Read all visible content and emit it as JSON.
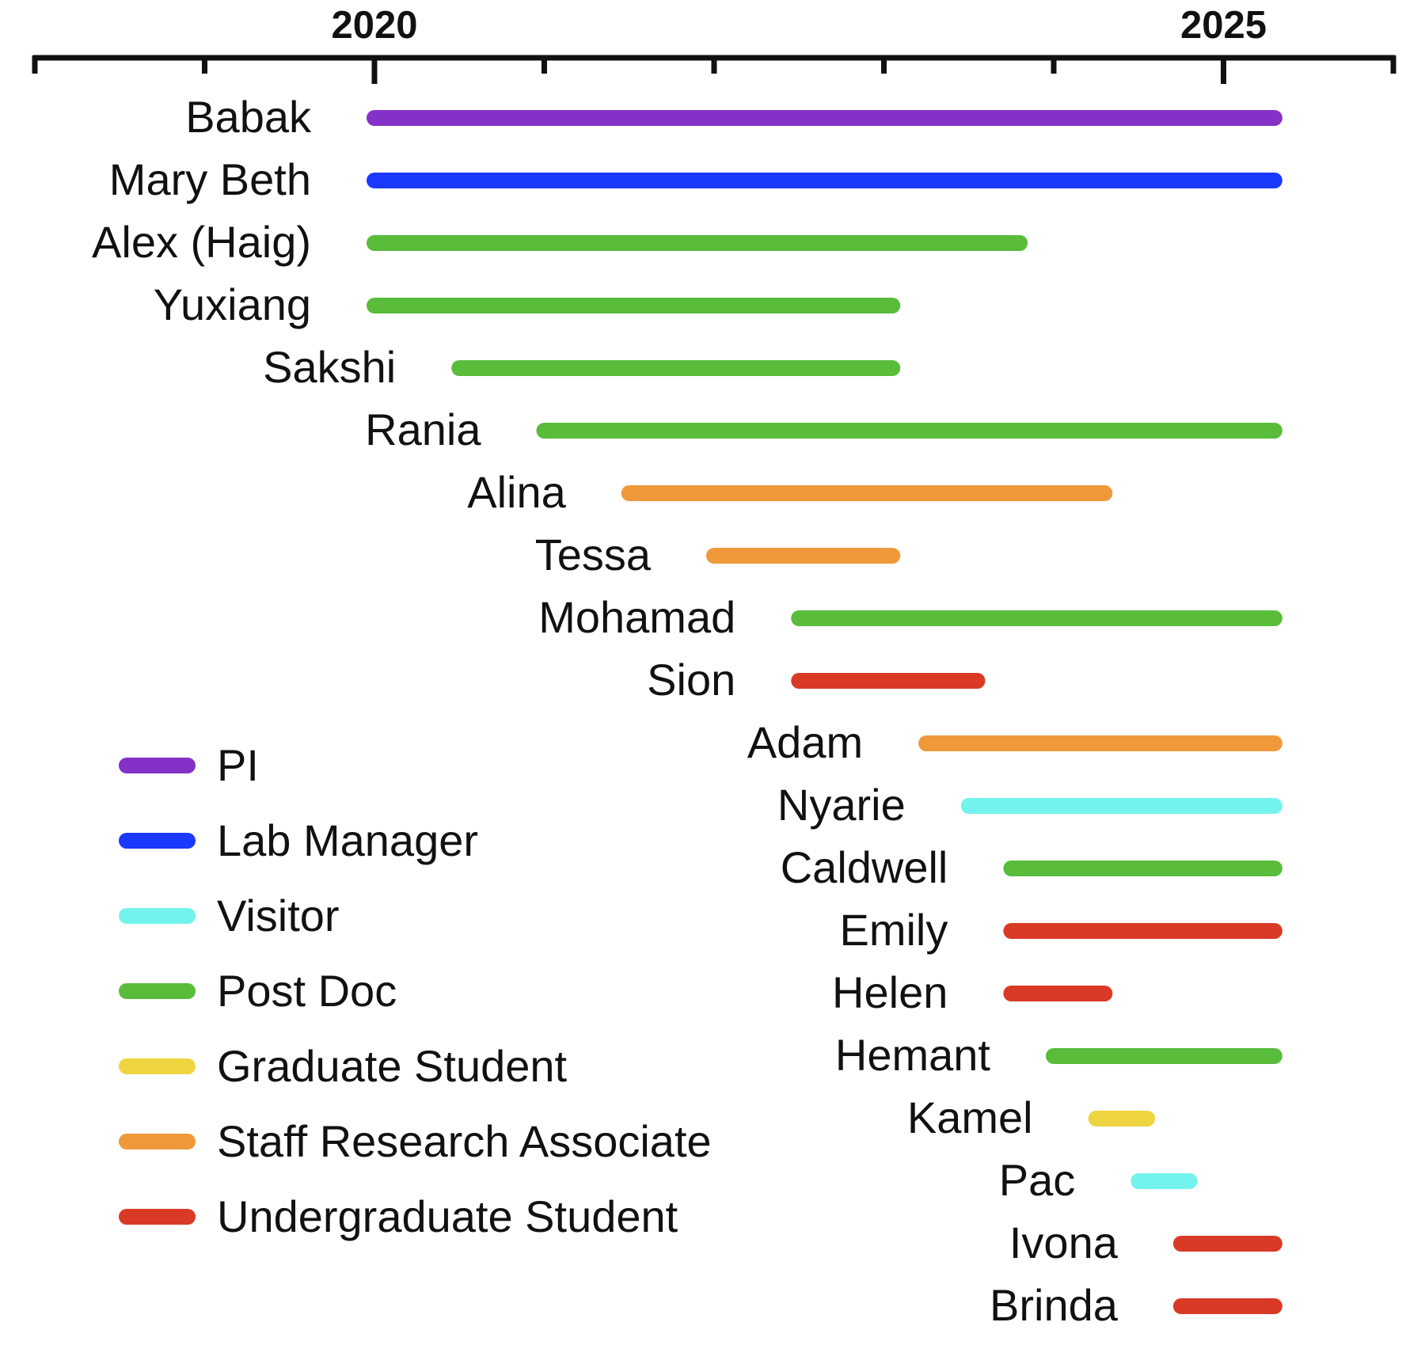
{
  "chart_data": {
    "type": "timeline",
    "title": "",
    "xlabel": "",
    "ylabel": "",
    "x_axis_position": "top",
    "xlim": [
      2018,
      2026
    ],
    "major_ticks": [
      2020,
      2025
    ],
    "minor_ticks": [
      2018,
      2019,
      2020,
      2021,
      2022,
      2023,
      2024,
      2025,
      2026
    ],
    "tick_labels": [
      "2020",
      "2025"
    ],
    "grid": false,
    "legend_position": "bottom-left",
    "categories": [
      {
        "key": "pi",
        "label": "PI",
        "color": "#8431C7"
      },
      {
        "key": "lab_manager",
        "label": "Lab Manager",
        "color": "#1A39FC"
      },
      {
        "key": "visitor",
        "label": "Visitor",
        "color": "#74F3EE"
      },
      {
        "key": "post_doc",
        "label": "Post Doc",
        "color": "#59BC3B"
      },
      {
        "key": "graduate_student",
        "label": "Graduate Student",
        "color": "#EED540"
      },
      {
        "key": "staff_research_associate",
        "label": "Staff Research Associate",
        "color": "#EF993A"
      },
      {
        "key": "undergraduate_student",
        "label": "Undergraduate Student",
        "color": "#D93A26"
      }
    ],
    "people": [
      {
        "name": "Babak",
        "role": "pi",
        "start": 2020.0,
        "end": 2025.3
      },
      {
        "name": "Mary Beth",
        "role": "lab_manager",
        "start": 2020.0,
        "end": 2025.3
      },
      {
        "name": "Alex (Haig)",
        "role": "post_doc",
        "start": 2020.0,
        "end": 2023.8
      },
      {
        "name": "Yuxiang",
        "role": "post_doc",
        "start": 2020.0,
        "end": 2023.05
      },
      {
        "name": "Sakshi",
        "role": "post_doc",
        "start": 2020.5,
        "end": 2023.05
      },
      {
        "name": "Rania",
        "role": "post_doc",
        "start": 2021.0,
        "end": 2025.3
      },
      {
        "name": "Alina",
        "role": "staff_research_associate",
        "start": 2021.5,
        "end": 2024.3
      },
      {
        "name": "Tessa",
        "role": "staff_research_associate",
        "start": 2022.0,
        "end": 2023.05
      },
      {
        "name": "Mohamad",
        "role": "post_doc",
        "start": 2022.5,
        "end": 2025.3
      },
      {
        "name": "Sion",
        "role": "undergraduate_student",
        "start": 2022.5,
        "end": 2023.55
      },
      {
        "name": "Adam",
        "role": "staff_research_associate",
        "start": 2023.25,
        "end": 2025.3
      },
      {
        "name": "Nyarie",
        "role": "visitor",
        "start": 2023.5,
        "end": 2025.3
      },
      {
        "name": "Caldwell",
        "role": "post_doc",
        "start": 2023.75,
        "end": 2025.3
      },
      {
        "name": "Emily",
        "role": "undergraduate_student",
        "start": 2023.75,
        "end": 2025.3
      },
      {
        "name": "Helen",
        "role": "undergraduate_student",
        "start": 2023.75,
        "end": 2024.3
      },
      {
        "name": "Hemant",
        "role": "post_doc",
        "start": 2024.0,
        "end": 2025.3
      },
      {
        "name": "Kamel",
        "role": "graduate_student",
        "start": 2024.25,
        "end": 2024.55
      },
      {
        "name": "Pac",
        "role": "visitor",
        "start": 2024.5,
        "end": 2024.8
      },
      {
        "name": "Ivona",
        "role": "undergraduate_student",
        "start": 2024.75,
        "end": 2025.3
      },
      {
        "name": "Brinda",
        "role": "undergraduate_student",
        "start": 2024.75,
        "end": 2025.3
      }
    ]
  }
}
